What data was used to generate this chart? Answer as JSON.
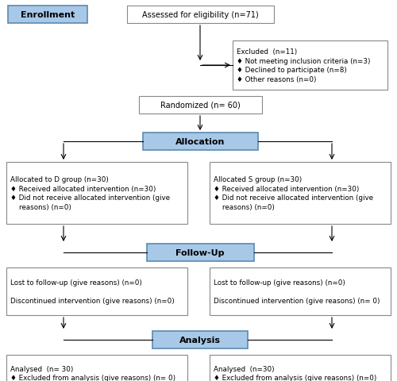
{
  "bg_color": "#ffffff",
  "blue_box_color": "#7ab0d8",
  "blue_box_edge": "#5a8ab0",
  "white_box_edge": "#888888",
  "enrollment_label": "Enrollment",
  "eligibility_text": "Assessed for eligibility (n=71)",
  "excluded_text": "Excluded  (n=11)\n♦ Not meeting inclusion criteria (n=3)\n♦ Declined to participate (n=8)\n♦ Other reasons (n=0)",
  "randomized_text": "Randomized (n= 60)",
  "allocation_label": "Allocation",
  "alloc_left_text": "Allocated to D group (n=30)\n♦ Received allocated intervention (n=30)\n♦ Did not receive allocated intervention (give\n    reasons) (n=0)",
  "alloc_right_text": "Allocated S group (n=30)\n♦ Received allocated intervention (n=30)\n♦ Did not receive allocated intervention (give\n    reasons) (n=0)",
  "followup_label": "Follow-Up",
  "follow_left_text": "Lost to follow-up (give reasons) (n=0)\n\nDiscontinued intervention (give reasons) (n=0)",
  "follow_right_text": "Lost to follow-up (give reasons) (n=0)\n\nDiscontinued intervention (give reasons) (n= 0)",
  "analysis_label": "Analysis",
  "analysis_left_text": "Analysed  (n= 30)\n♦ Excluded from analysis (give reasons) (n= 0)",
  "analysis_right_text": "Analysed  (n=30)\n♦ Excluded from analysis (give reasons) (n=0)"
}
